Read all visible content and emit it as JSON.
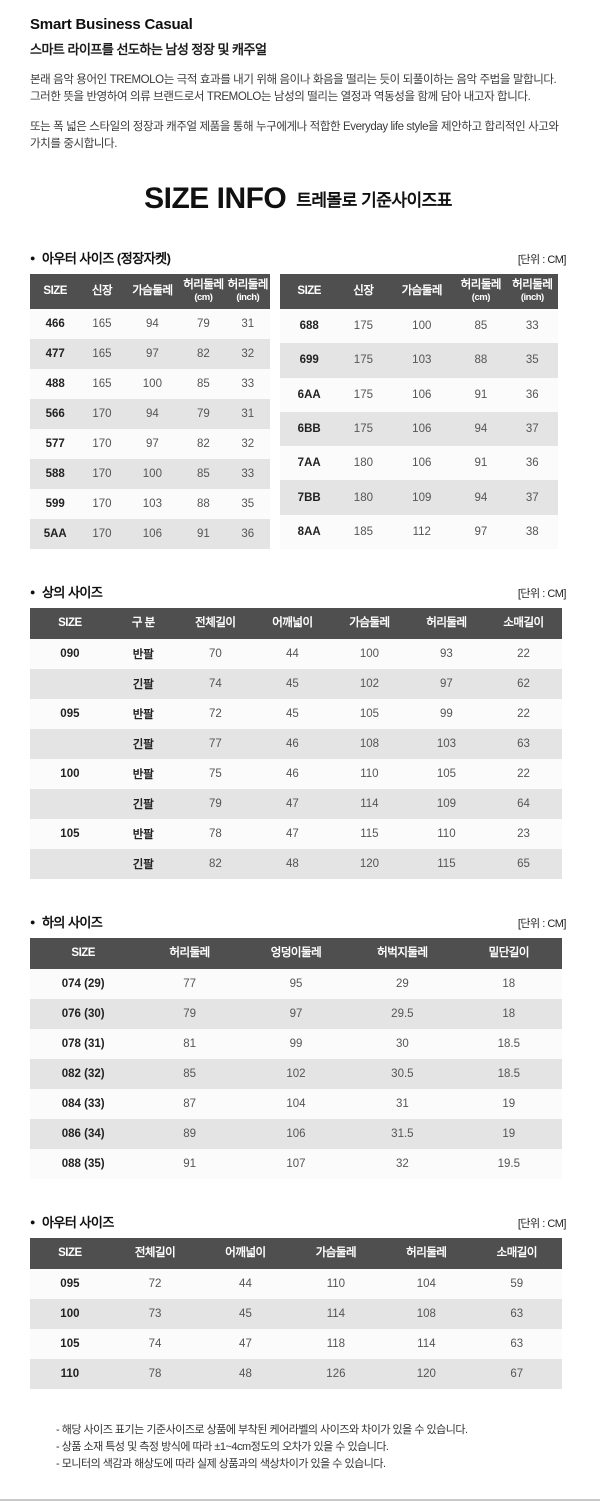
{
  "brand": {
    "title": "Smart Business Casual",
    "subtitle": "스마트 라이프를 선도하는 남성 정장 및 캐주얼",
    "intro1_line1": "본래 음악 용어인 TREMOLO는 극적 효과를 내기 위해 음이나 화음을 떨리는 듯이 되풀이하는 음악 주법을 말합니다.",
    "intro1_line2": "그러한 뜻을 반영하여 의류 브랜드로서 TREMOLO는 남성의 떨리는 열정과 역동성을 함께 담아 내고자 합니다.",
    "intro2": "또는 폭 넓은 스타일의 정장과 캐주얼 제품을 통해 누구에게나 적합한 Everyday life style을 제안하고 합리적인 사고와 가치를 중시합니다."
  },
  "size_info": {
    "title_en": "SIZE INFO",
    "title_ko": "트레몰로 기준사이즈표"
  },
  "colors": {
    "table_header_bg": "#4f4f4f",
    "row_light": "#fbfbfb",
    "row_dark": "#e4e4e4"
  },
  "sections": [
    {
      "id": "outer-jacket",
      "bullet": "●",
      "label": "아우터 사이즈 (정장자켓)",
      "unit": "[단위 : CM]",
      "tables": [
        {
          "name": "outer-jacket-size-table-left",
          "headers": [
            "SIZE",
            "신장",
            "가슴둘레",
            "허리둘레\n(cm)",
            "허리둘레\n(inch)"
          ],
          "rows": [
            [
              "466",
              "165",
              "94",
              "79",
              "31"
            ],
            [
              "477",
              "165",
              "97",
              "82",
              "32"
            ],
            [
              "488",
              "165",
              "100",
              "85",
              "33"
            ],
            [
              "566",
              "170",
              "94",
              "79",
              "31"
            ],
            [
              "577",
              "170",
              "97",
              "82",
              "32"
            ],
            [
              "588",
              "170",
              "100",
              "85",
              "33"
            ],
            [
              "599",
              "170",
              "103",
              "88",
              "35"
            ],
            [
              "5AA",
              "170",
              "106",
              "91",
              "36"
            ]
          ]
        },
        {
          "name": "outer-jacket-size-table-right",
          "headers": [
            "SIZE",
            "신장",
            "가슴둘레",
            "허리둘레\n(cm)",
            "허리둘레\n(inch)"
          ],
          "rows": [
            [
              "688",
              "175",
              "100",
              "85",
              "33"
            ],
            [
              "699",
              "175",
              "103",
              "88",
              "35"
            ],
            [
              "6AA",
              "175",
              "106",
              "91",
              "36"
            ],
            [
              "6BB",
              "175",
              "106",
              "94",
              "37"
            ],
            [
              "7AA",
              "180",
              "106",
              "91",
              "36"
            ],
            [
              "7BB",
              "180",
              "109",
              "94",
              "37"
            ],
            [
              "8AA",
              "185",
              "112",
              "97",
              "38"
            ]
          ]
        }
      ]
    },
    {
      "id": "tops",
      "bullet": "●",
      "label": "상의 사이즈",
      "unit": "[단위 : CM]",
      "tables": [
        {
          "name": "tops-size-table",
          "headers": [
            "SIZE",
            "구 분",
            "전체길이",
            "어깨넓이",
            "가슴둘레",
            "허리둘레",
            "소매길이"
          ],
          "rows": [
            [
              "090",
              "반팔",
              "70",
              "44",
              "100",
              "93",
              "22"
            ],
            [
              "",
              "긴팔",
              "74",
              "45",
              "102",
              "97",
              "62"
            ],
            [
              "095",
              "반팔",
              "72",
              "45",
              "105",
              "99",
              "22"
            ],
            [
              "",
              "긴팔",
              "77",
              "46",
              "108",
              "103",
              "63"
            ],
            [
              "100",
              "반팔",
              "75",
              "46",
              "110",
              "105",
              "22"
            ],
            [
              "",
              "긴팔",
              "79",
              "47",
              "114",
              "109",
              "64"
            ],
            [
              "105",
              "반팔",
              "78",
              "47",
              "115",
              "110",
              "23"
            ],
            [
              "",
              "긴팔",
              "82",
              "48",
              "120",
              "115",
              "65"
            ]
          ]
        }
      ]
    },
    {
      "id": "bottoms",
      "bullet": "●",
      "label": "하의 사이즈",
      "unit": "[단위 : CM]",
      "tables": [
        {
          "name": "bottoms-size-table",
          "headers": [
            "SIZE",
            "허리둘레",
            "엉덩이둘레",
            "허벅지둘레",
            "밑단길이"
          ],
          "rows": [
            [
              "074 (29)",
              "77",
              "95",
              "29",
              "18"
            ],
            [
              "076 (30)",
              "79",
              "97",
              "29.5",
              "18"
            ],
            [
              "078 (31)",
              "81",
              "99",
              "30",
              "18.5"
            ],
            [
              "082 (32)",
              "85",
              "102",
              "30.5",
              "18.5"
            ],
            [
              "084 (33)",
              "87",
              "104",
              "31",
              "19"
            ],
            [
              "086 (34)",
              "89",
              "106",
              "31.5",
              "19"
            ],
            [
              "088 (35)",
              "91",
              "107",
              "32",
              "19.5"
            ]
          ]
        }
      ]
    },
    {
      "id": "outerwear",
      "bullet": "●",
      "label": "아우터 사이즈",
      "unit": "[단위 : CM]",
      "tables": [
        {
          "name": "outerwear-size-table",
          "headers": [
            "SIZE",
            "전체길이",
            "어깨넓이",
            "가슴둘레",
            "허리둘레",
            "소매길이"
          ],
          "rows": [
            [
              "095",
              "72",
              "44",
              "110",
              "104",
              "59"
            ],
            [
              "100",
              "73",
              "45",
              "114",
              "108",
              "63"
            ],
            [
              "105",
              "74",
              "47",
              "118",
              "114",
              "63"
            ],
            [
              "110",
              "78",
              "48",
              "126",
              "120",
              "67"
            ]
          ]
        }
      ]
    }
  ],
  "footnotes": [
    "- 해당 사이즈 표기는 기준사이즈로 상품에 부착된 케어라벨의 사이즈와 차이가 있을 수 있습니다.",
    "- 상품 소재 특성 및 측정 방식에 따라 ±1~4cm정도의 오차가 있을 수 있습니다.",
    "- 모니터의 색감과 해상도에 따라 실제 상품과의 색상차이가 있을 수 있습니다."
  ]
}
